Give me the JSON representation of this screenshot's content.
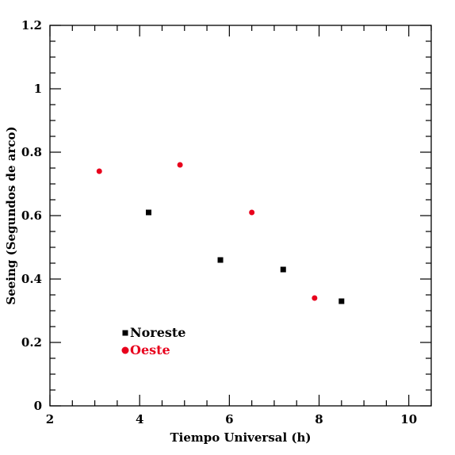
{
  "chart_data": {
    "type": "scatter",
    "title": "",
    "xlabel": "Tiempo Universal (h)",
    "ylabel": "Seeing (Segundos de arco)",
    "xlim": [
      2,
      10.5
    ],
    "ylim": [
      0,
      1.2
    ],
    "x_ticks": [
      2,
      4,
      6,
      8,
      10
    ],
    "x_tick_labels": [
      "2",
      "4",
      "6",
      "8",
      "10"
    ],
    "y_ticks": [
      0,
      0.2,
      0.4,
      0.6,
      0.8,
      1,
      1.2
    ],
    "y_tick_labels": [
      "0",
      "0.2",
      "0.4",
      "0.6",
      "0.8",
      "1",
      "1.2"
    ],
    "grid": false,
    "legend_position": "bottom-left",
    "series": [
      {
        "name": "Noreste",
        "marker": "square",
        "color": "#000000",
        "points": [
          {
            "x": 4.2,
            "y": 0.61
          },
          {
            "x": 5.8,
            "y": 0.46
          },
          {
            "x": 7.2,
            "y": 0.43
          },
          {
            "x": 8.5,
            "y": 0.33
          }
        ]
      },
      {
        "name": "Oeste",
        "marker": "circle",
        "color": "#e8001c",
        "points": [
          {
            "x": 3.1,
            "y": 0.74
          },
          {
            "x": 4.9,
            "y": 0.76
          },
          {
            "x": 6.5,
            "y": 0.61
          },
          {
            "x": 7.9,
            "y": 0.34
          }
        ]
      }
    ]
  }
}
